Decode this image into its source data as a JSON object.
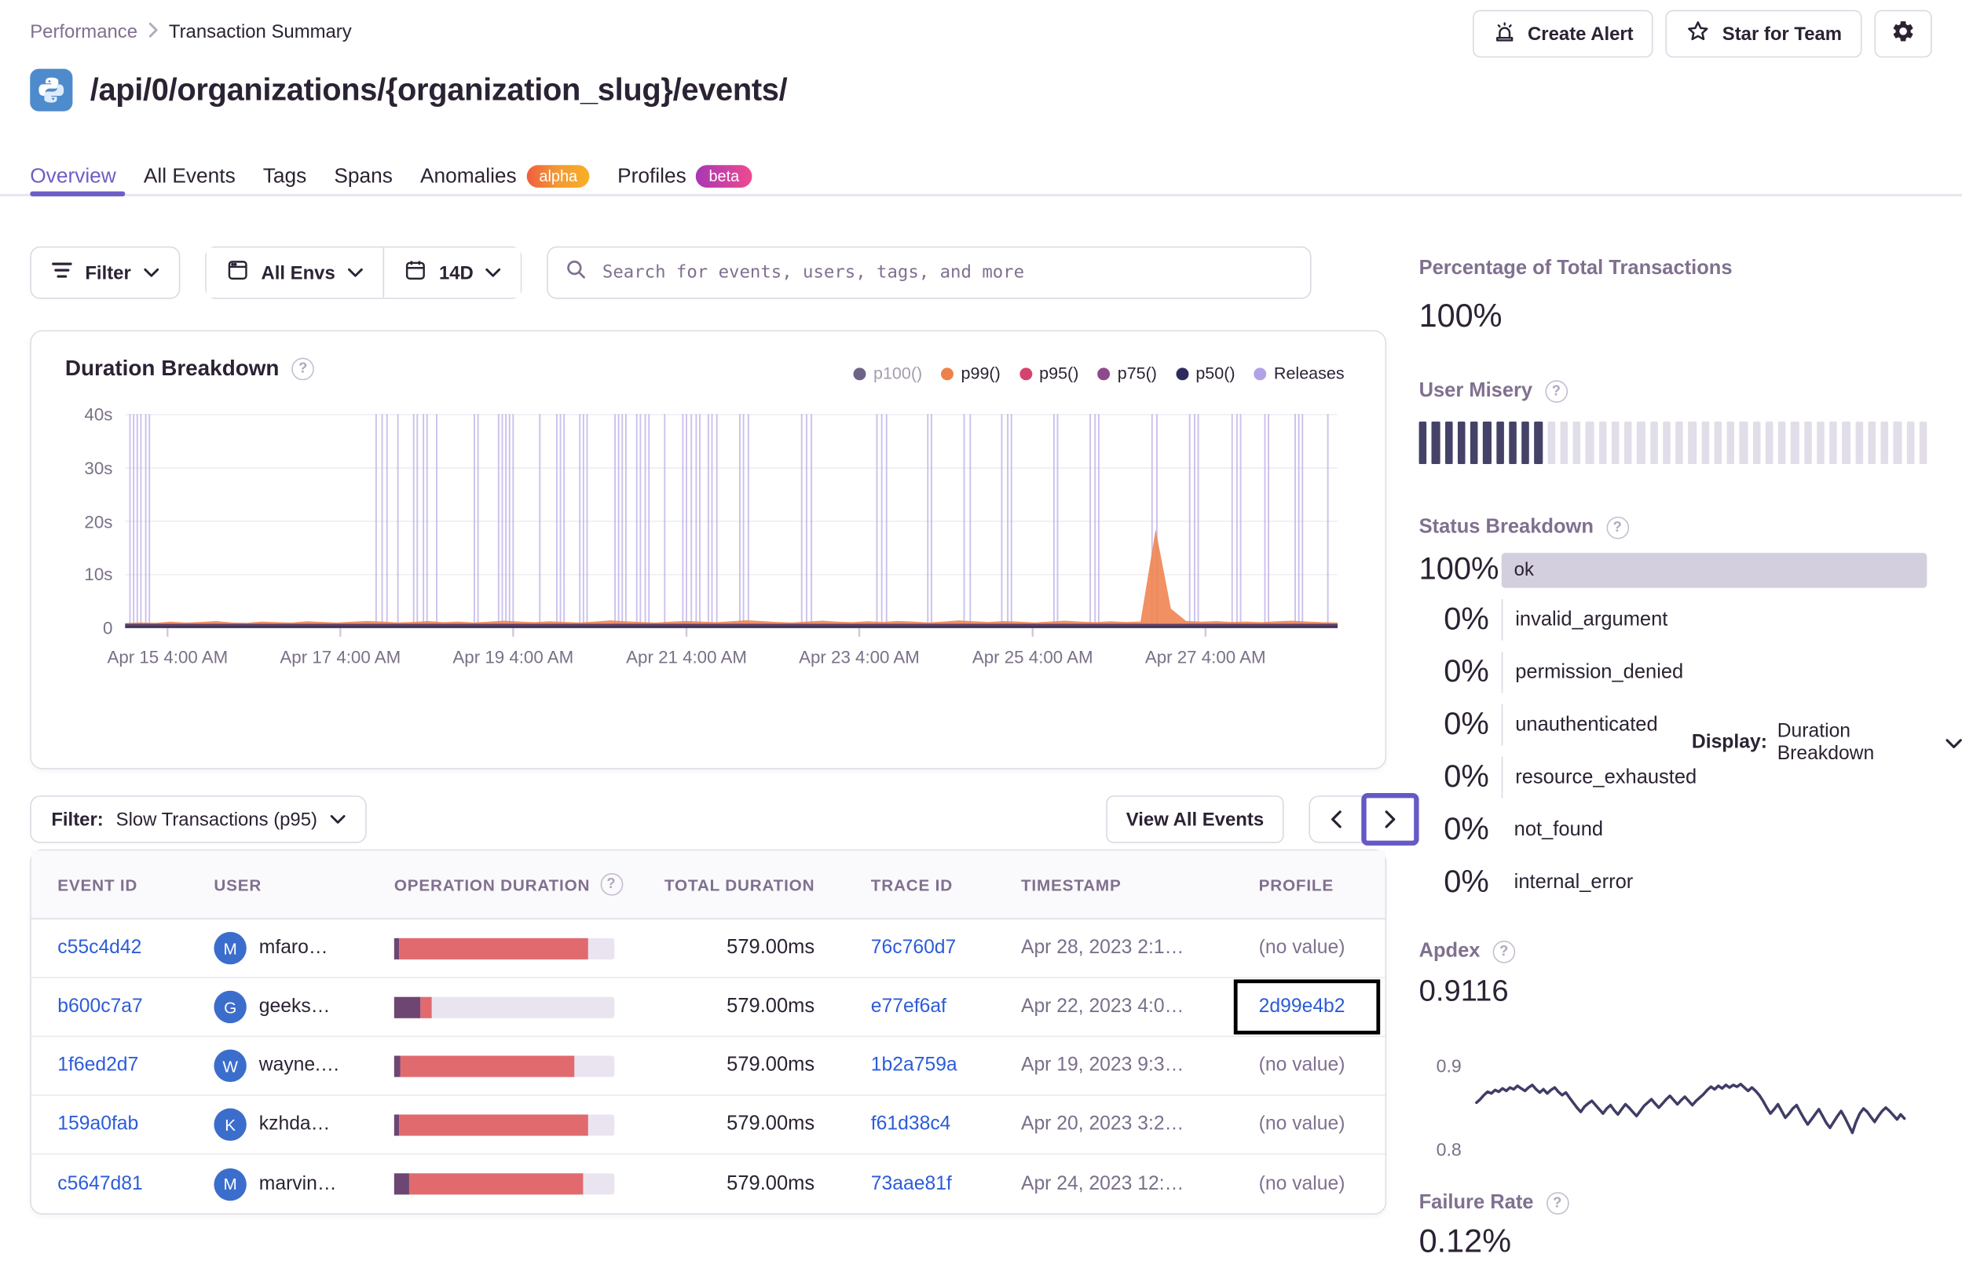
{
  "breadcrumb": {
    "items": [
      "Performance",
      "Transaction Summary"
    ]
  },
  "header": {
    "title": "/api/0/organizations/{organization_slug}/events/",
    "platform_icon": "python-logo",
    "actions": {
      "create_alert": "Create Alert",
      "star_for_team": "Star for Team",
      "settings_icon": "gear-icon"
    }
  },
  "tabs": [
    {
      "label": "Overview",
      "active": true
    },
    {
      "label": "All Events",
      "active": false
    },
    {
      "label": "Tags",
      "active": false
    },
    {
      "label": "Spans",
      "active": false
    },
    {
      "label": "Anomalies",
      "active": false,
      "badge": "alpha"
    },
    {
      "label": "Profiles",
      "active": false,
      "badge": "beta"
    }
  ],
  "filters": {
    "filter_label": "Filter",
    "env_label": "All Envs",
    "date_label": "14D",
    "search_placeholder": "Search for events, users, tags, and more"
  },
  "duration_chart": {
    "type": "area",
    "title": "Duration Breakdown",
    "legend": [
      {
        "label": "p100()",
        "color": "#6f6287",
        "muted": true
      },
      {
        "label": "p99()",
        "color": "#ee8147",
        "muted": false
      },
      {
        "label": "p95()",
        "color": "#d6446e",
        "muted": false
      },
      {
        "label": "p75()",
        "color": "#8d4b8b",
        "muted": false
      },
      {
        "label": "p50()",
        "color": "#2f2b5e",
        "muted": false
      },
      {
        "label": "Releases",
        "color": "#b3a1e6",
        "muted": false
      }
    ],
    "y_ticks": [
      "40s",
      "30s",
      "20s",
      "10s",
      "0"
    ],
    "ylim": [
      0,
      40
    ],
    "x_ticks": [
      "Apr 15 4:00 AM",
      "Apr 17 4:00 AM",
      "Apr 19 4:00 AM",
      "Apr 21 4:00 AM",
      "Apr 23 4:00 AM",
      "Apr 25 4:00 AM",
      "Apr 27 4:00 AM"
    ],
    "x_tick_pct": [
      3.5,
      17.75,
      32.0,
      46.3,
      60.55,
      74.85,
      89.1
    ],
    "releases_pct": [
      0.4,
      0.7,
      1.0,
      1.3,
      1.7,
      2.0,
      20.7,
      21.2,
      21.6,
      22.5,
      23.8,
      24.1,
      24.6,
      24.9,
      25.7,
      28.8,
      29.1,
      30.8,
      31.1,
      31.4,
      31.7,
      32.0,
      34.2,
      35.6,
      35.9,
      36.2,
      37.5,
      37.8,
      38.1,
      40.4,
      40.7,
      41.0,
      41.3,
      42.2,
      42.5,
      42.9,
      43.2,
      44.5,
      46.0,
      46.3,
      46.7,
      47.1,
      47.4,
      48.1,
      48.4,
      48.8,
      50.7,
      51.0,
      51.4,
      55.8,
      56.2,
      56.6,
      62.0,
      62.4,
      62.8,
      66.2,
      66.5,
      69.2,
      69.7,
      72.3,
      72.8,
      73.1,
      76.6,
      76.9,
      79.6,
      80.0,
      80.3,
      84.7,
      85.1,
      87.8,
      88.2,
      88.5,
      91.3,
      91.7,
      92.0,
      94.0,
      94.3,
      96.5,
      96.8,
      97.1,
      99.2
    ],
    "p99_heights_pct": [
      2.3,
      2.6,
      2.4,
      2.9,
      2.5,
      2.8,
      3.2,
      2.6,
      2.4,
      3.0,
      2.7,
      2.5,
      3.1,
      2.8,
      2.5,
      2.9,
      3.3,
      3.0,
      2.6,
      2.8,
      3.2,
      2.7,
      3.0,
      2.6,
      2.9,
      3.4,
      3.0,
      2.7,
      3.1,
      2.8,
      2.6,
      3.0,
      3.5,
      3.1,
      2.8,
      2.5,
      2.9,
      3.3,
      3.0,
      2.7,
      3.1,
      3.6,
      3.2,
      2.8,
      2.6,
      3.0,
      3.4,
      2.9,
      2.7,
      3.1,
      2.8,
      3.3,
      3.0,
      2.6,
      3.0,
      3.5,
      3.1,
      2.8,
      3.2,
      2.9,
      2.6,
      3.0,
      3.4,
      3.0,
      2.7,
      3.1,
      2.8,
      3.0,
      46,
      9,
      3.3,
      2.9,
      3.2,
      2.8,
      3.0,
      2.7,
      3.1,
      3.4,
      3.0,
      2.7,
      2.5
    ],
    "display_label": "Display:",
    "display_value": "Duration Breakdown"
  },
  "events_section": {
    "filter_label": "Filter:",
    "filter_value": "Slow Transactions (p95)",
    "view_all_label": "View All Events",
    "table": {
      "columns": [
        "EVENT ID",
        "USER",
        "OPERATION DURATION",
        "TOTAL DURATION",
        "TRACE ID",
        "TIMESTAMP",
        "PROFILE"
      ],
      "op_duration_help_icon": true,
      "rows": [
        {
          "event_id": "c55c4d42",
          "user_initial": "M",
          "user": "mfaro…",
          "op_bar": {
            "purple": 2,
            "red": 86
          },
          "total": "579.00ms",
          "trace": "76c760d7",
          "timestamp": "Apr 28, 2023 2:1…",
          "profile": "(no value)",
          "profile_link": false,
          "highlighted": false
        },
        {
          "event_id": "b600c7a7",
          "user_initial": "G",
          "user": "geeks…",
          "op_bar": {
            "purple": 12,
            "red": 5
          },
          "total": "579.00ms",
          "trace": "e77ef6af",
          "timestamp": "Apr 22, 2023 4:0…",
          "profile": "2d99e4b2",
          "profile_link": true,
          "highlighted": true
        },
        {
          "event_id": "1f6ed2d7",
          "user_initial": "W",
          "user": "wayne.…",
          "op_bar": {
            "purple": 3,
            "red": 79
          },
          "total": "579.00ms",
          "trace": "1b2a759a",
          "timestamp": "Apr 19, 2023 9:3…",
          "profile": "(no value)",
          "profile_link": false,
          "highlighted": false
        },
        {
          "event_id": "159a0fab",
          "user_initial": "K",
          "user": "kzhda…",
          "op_bar": {
            "purple": 2,
            "red": 86
          },
          "total": "579.00ms",
          "trace": "f61d38c4",
          "timestamp": "Apr 20, 2023 3:2…",
          "profile": "(no value)",
          "profile_link": false,
          "highlighted": false
        },
        {
          "event_id": "c5647d81",
          "user_initial": "M",
          "user": "marvin…",
          "op_bar": {
            "purple": 7,
            "red": 79
          },
          "total": "579.00ms",
          "trace": "73aae81f",
          "timestamp": "Apr 24, 2023 12:…",
          "profile": "(no value)",
          "profile_link": false,
          "highlighted": false
        }
      ]
    }
  },
  "sidebar": {
    "total_transactions": {
      "title": "Percentage of Total Transactions",
      "value": "100%"
    },
    "user_misery": {
      "title": "User Misery",
      "filled": 10,
      "total": 40,
      "filled_color": "#444266",
      "empty_color": "#e2dee9"
    },
    "status_breakdown": {
      "title": "Status Breakdown",
      "rows": [
        {
          "pct": "100%",
          "label": "ok",
          "bar": true,
          "tick": false
        },
        {
          "pct": "0%",
          "label": "invalid_argument",
          "bar": false,
          "tick": true
        },
        {
          "pct": "0%",
          "label": "permission_denied",
          "bar": false,
          "tick": true
        },
        {
          "pct": "0%",
          "label": "unauthenticated",
          "bar": false,
          "tick": true
        },
        {
          "pct": "0%",
          "label": "resource_exhausted",
          "bar": false,
          "tick": true
        },
        {
          "pct": "0%",
          "label": "not_found",
          "bar": false,
          "tick": false
        },
        {
          "pct": "0%",
          "label": "internal_error",
          "bar": false,
          "tick": false
        }
      ]
    },
    "apdex": {
      "title": "Apdex",
      "value": "0.9116",
      "y_top": "0.9",
      "y_bottom": "0.8",
      "line_color": "#3f3d66",
      "sparkline": [
        0.856,
        0.86,
        0.865,
        0.869,
        0.867,
        0.871,
        0.869,
        0.873,
        0.87,
        0.874,
        0.872,
        0.876,
        0.873,
        0.87,
        0.874,
        0.877,
        0.872,
        0.868,
        0.872,
        0.867,
        0.871,
        0.874,
        0.869,
        0.865,
        0.868,
        0.862,
        0.856,
        0.85,
        0.845,
        0.851,
        0.855,
        0.858,
        0.853,
        0.848,
        0.843,
        0.849,
        0.853,
        0.847,
        0.842,
        0.848,
        0.854,
        0.85,
        0.845,
        0.84,
        0.846,
        0.852,
        0.856,
        0.86,
        0.855,
        0.85,
        0.855,
        0.86,
        0.864,
        0.859,
        0.854,
        0.859,
        0.863,
        0.858,
        0.853,
        0.858,
        0.862,
        0.866,
        0.871,
        0.875,
        0.872,
        0.876,
        0.873,
        0.877,
        0.874,
        0.877,
        0.875,
        0.878,
        0.874,
        0.87,
        0.874,
        0.87,
        0.865,
        0.858,
        0.85,
        0.843,
        0.848,
        0.854,
        0.846,
        0.838,
        0.843,
        0.849,
        0.853,
        0.845,
        0.837,
        0.83,
        0.836,
        0.842,
        0.848,
        0.84,
        0.832,
        0.826,
        0.833,
        0.84,
        0.846,
        0.838,
        0.829,
        0.82,
        0.833,
        0.843,
        0.849,
        0.845,
        0.839,
        0.833,
        0.84,
        0.846,
        0.85,
        0.846,
        0.841,
        0.836,
        0.842,
        0.837
      ]
    },
    "failure_rate": {
      "title": "Failure Rate",
      "value": "0.12%"
    }
  },
  "colors": {
    "accent_purple": "#6c5fc7",
    "link_blue": "#2c5cd8",
    "text_dark": "#2b2233",
    "text_gray_purple": "#80708f",
    "border": "#e0dce5",
    "op_bar_purple": "#6e4672",
    "op_bar_red": "#e16a6e",
    "status_ok_bar": "#d4cfdf",
    "release_line": "#b7a8e4",
    "p99_area": "#ef8451"
  }
}
